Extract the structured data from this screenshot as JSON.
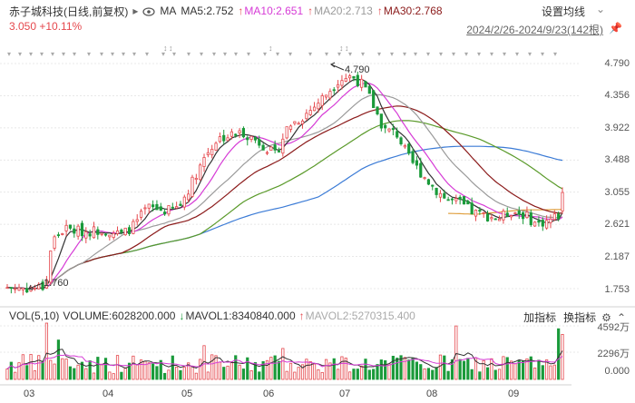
{
  "header": {
    "stock_name": "赤子城科技(日线,前复权)",
    "play_icon": "▸",
    "ma_label": "MA",
    "ma5": "MA5:2.752",
    "ma10": "MA10:2.651",
    "ma20": "MA20:2.713",
    "ma30": "MA30:2.768",
    "settings": "设置均线",
    "price_change": "3.050 +10.11%",
    "date_range": "2024/2/26-2024/9/23(142根)"
  },
  "colors": {
    "up": "#e5484d",
    "down": "#1a9a3a",
    "ma5": "#333333",
    "ma10": "#d63bd6",
    "ma20": "#9a9a9a",
    "ma30": "#8b1a1a",
    "ma60": "#5a9a2a",
    "ma120": "#3b7bd6",
    "ma250": "#e0a040"
  },
  "price_axis": [
    "4.790",
    "4.356",
    "3.922",
    "3.488",
    "3.055",
    "2.621",
    "2.187",
    "1.753"
  ],
  "annotations": {
    "high": "4.790",
    "low": "1.760"
  },
  "volume": {
    "title": "VOL(5,10)",
    "volume": "VOLUME:6028200.000",
    "mavol1": "MAVOL1:8340840.000",
    "mavol2": "MAVOL2:5270315.400",
    "add_indicator": "加指标",
    "switch_indicator": "换指标",
    "axis": [
      "4592万",
      "2296万",
      "0.000"
    ]
  },
  "months": [
    "03",
    "04",
    "05",
    "06",
    "07",
    "08",
    "09"
  ],
  "chart_data": {
    "type": "candlestick",
    "x_range": [
      "2024/2/26",
      "2024/9/23"
    ],
    "bars": 142,
    "y_range": [
      1.753,
      4.79
    ],
    "high": 4.79,
    "low": 1.76,
    "last_close": 3.05,
    "change_pct": 10.11,
    "ma": {
      "MA5": 2.752,
      "MA10": 2.651,
      "MA20": 2.713,
      "MA30": 2.768
    },
    "volume_last": 6028200,
    "mavol1": 8340840,
    "mavol2": 5270315.4
  }
}
